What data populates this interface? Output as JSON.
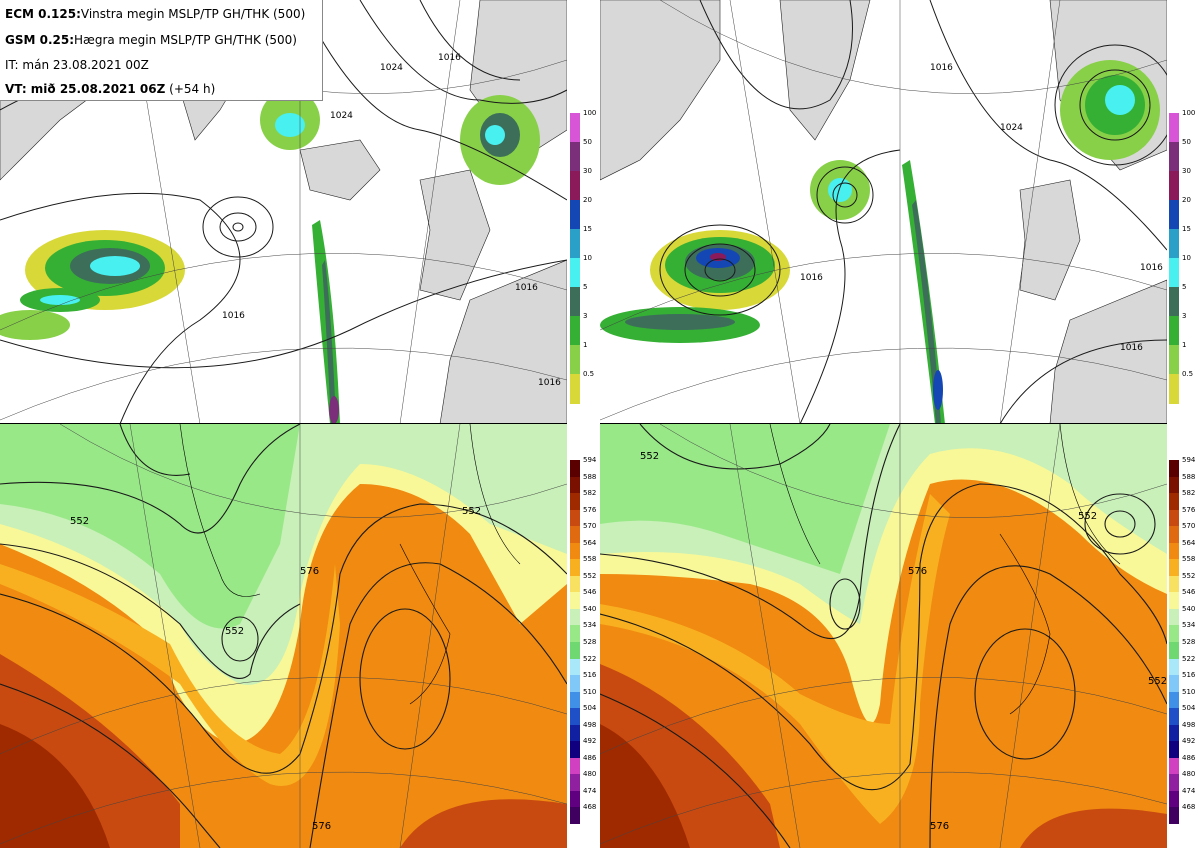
{
  "info_box": {
    "line1_bold": "ECM 0.125:",
    "line1_text": "Vinstra megin MSLP/TP GH/THK (500)",
    "line2_bold": "GSM 0.25:",
    "line2_text": "Hægra megin MSLP/TP GH/THK (500)",
    "line3_text": "IT: mán 23.08.2021 00Z",
    "line4_bold": "VT: mið 25.08.2021 06Z",
    "line4_text": " (+54 h)"
  },
  "precip_colorbar": {
    "labels": [
      "100",
      "50",
      "30",
      "20",
      "15",
      "10",
      "5",
      "3",
      "1",
      "0.5"
    ],
    "colors": [
      "#d855d8",
      "#7b2f7b",
      "#8a1a5a",
      "#1446b4",
      "#2aa0c8",
      "#48f0f0",
      "#3c6e5a",
      "#35b035",
      "#88d048",
      "#d8d838"
    ]
  },
  "thk_colorbar": {
    "labels": [
      "594",
      "588",
      "582",
      "576",
      "570",
      "564",
      "558",
      "552",
      "546",
      "540",
      "534",
      "528",
      "522",
      "516",
      "510",
      "504",
      "498",
      "492",
      "486",
      "480",
      "474",
      "468"
    ],
    "colors": [
      "#5a0000",
      "#7a1000",
      "#a02a00",
      "#c84a10",
      "#e06a10",
      "#f08a10",
      "#f8b020",
      "#f8e060",
      "#f8f898",
      "#c8f0b8",
      "#98e888",
      "#70d870",
      "#a8e8f8",
      "#80c8f8",
      "#4090e8",
      "#2050c8",
      "#1020a0",
      "#100080",
      "#d040c0",
      "#9020a0",
      "#600080",
      "#400060"
    ]
  },
  "contour_labels": {
    "tl": [
      "1016",
      "1024",
      "1016",
      "1024",
      "1016",
      "1016"
    ],
    "tr": [
      "1016",
      "1016",
      "1024",
      "1016",
      "1016"
    ],
    "bl": [
      "552",
      "576",
      "552",
      "576",
      "552"
    ],
    "br": [
      "552",
      "576",
      "552",
      "576",
      "552"
    ]
  },
  "colors": {
    "land": "#d8d8d8",
    "coast": "#000000",
    "isobar": "#1a1a1a"
  }
}
